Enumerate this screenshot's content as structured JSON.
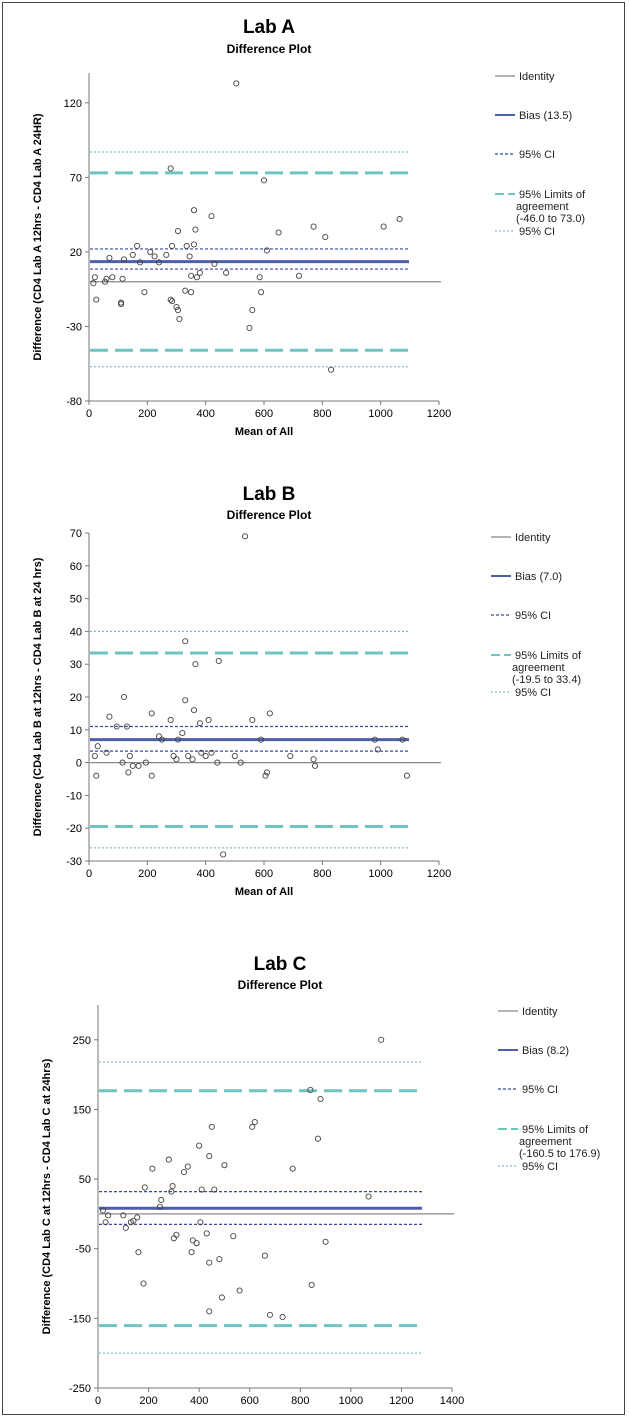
{
  "chart_data": [
    {
      "type": "scatter",
      "title": "Lab A",
      "subtitle": "Difference Plot",
      "xlabel": "Mean of All",
      "ylabel": "Difference (CD4 Lab A 12hrs - CD4 Lab A 24HR)",
      "xlim": [
        0,
        1200
      ],
      "ylim": [
        -80,
        140
      ],
      "xticks": [
        "0",
        "200",
        "400",
        "600",
        "800",
        "1000",
        "1200"
      ],
      "yticks": [
        "-80",
        "-30",
        "20",
        "70",
        "120"
      ],
      "legend": {
        "identity": "Identity",
        "bias": "Bias (13.5)",
        "ci": "95% CI",
        "loa": [
          "95% Limits of",
          "agreement",
          "(-46.0 to 73.0)"
        ],
        "ci2": "95% CI"
      },
      "lines": {
        "identity": 0,
        "bias": 13.5,
        "bias_ci": [
          8.5,
          22
        ],
        "loa": [
          -46,
          73
        ],
        "loa_ci": [
          -57,
          87
        ]
      },
      "colors": {
        "identity": "#888888",
        "bias": "#4e5fa8",
        "bias_ci": "#3a47a0",
        "loa": "#6fc3c3",
        "loa_ci": "#5bb3bf"
      },
      "points": [
        [
          15,
          -1
        ],
        [
          20,
          3
        ],
        [
          25,
          -12
        ],
        [
          55,
          0
        ],
        [
          60,
          2
        ],
        [
          70,
          16
        ],
        [
          80,
          3
        ],
        [
          110,
          -14
        ],
        [
          110,
          -15
        ],
        [
          115,
          2
        ],
        [
          120,
          15
        ],
        [
          150,
          18
        ],
        [
          165,
          24
        ],
        [
          175,
          13
        ],
        [
          190,
          -7
        ],
        [
          210,
          20
        ],
        [
          225,
          17
        ],
        [
          240,
          13
        ],
        [
          265,
          18
        ],
        [
          280,
          -12
        ],
        [
          285,
          -13
        ],
        [
          285,
          24
        ],
        [
          280,
          76
        ],
        [
          300,
          -17
        ],
        [
          305,
          -19
        ],
        [
          310,
          -25
        ],
        [
          305,
          34
        ],
        [
          330,
          -6
        ],
        [
          335,
          24
        ],
        [
          345,
          17
        ],
        [
          350,
          4
        ],
        [
          350,
          -7
        ],
        [
          360,
          25
        ],
        [
          360,
          48
        ],
        [
          365,
          35
        ],
        [
          370,
          3
        ],
        [
          380,
          6
        ],
        [
          420,
          44
        ],
        [
          430,
          12
        ],
        [
          470,
          6
        ],
        [
          505,
          133
        ],
        [
          550,
          -31
        ],
        [
          560,
          -19
        ],
        [
          585,
          3
        ],
        [
          590,
          -7
        ],
        [
          600,
          68
        ],
        [
          610,
          21
        ],
        [
          650,
          33
        ],
        [
          720,
          4
        ],
        [
          770,
          37
        ],
        [
          810,
          30
        ],
        [
          830,
          -59
        ],
        [
          1010,
          37
        ],
        [
          1065,
          42
        ]
      ]
    },
    {
      "type": "scatter",
      "title": "Lab B",
      "subtitle": "Difference Plot",
      "xlabel": "Mean of All",
      "ylabel": "Difference (CD4 Lab B at 12hrs - CD4 Lab B at 24 hrs)",
      "xlim": [
        0,
        1200
      ],
      "ylim": [
        -30,
        70
      ],
      "xticks": [
        "0",
        "200",
        "400",
        "600",
        "800",
        "1000",
        "1200"
      ],
      "yticks": [
        "-30",
        "-20",
        "-10",
        "0",
        "10",
        "20",
        "30",
        "40",
        "50",
        "60",
        "70"
      ],
      "legend": {
        "identity": "Identity",
        "bias": "Bias (7.0)",
        "ci": "95% CI",
        "loa": [
          "95% Limits of",
          "agreement",
          "(-19.5 to 33.4)"
        ],
        "ci2": "95% CI"
      },
      "lines": {
        "identity": 0,
        "bias": 7.0,
        "bias_ci": [
          3.5,
          11
        ],
        "loa": [
          -19.5,
          33.4
        ],
        "loa_ci": [
          -26,
          40
        ]
      },
      "colors": {
        "identity": "#888888",
        "bias": "#4e5fa8",
        "bias_ci": "#3a47a0",
        "loa": "#6fc3c3",
        "loa_ci": "#5bb3bf"
      },
      "points": [
        [
          20,
          2
        ],
        [
          25,
          -4
        ],
        [
          30,
          5
        ],
        [
          60,
          3
        ],
        [
          70,
          14
        ],
        [
          95,
          11
        ],
        [
          115,
          0
        ],
        [
          120,
          20
        ],
        [
          130,
          11
        ],
        [
          135,
          -3
        ],
        [
          140,
          2
        ],
        [
          150,
          -1
        ],
        [
          170,
          -1
        ],
        [
          195,
          0
        ],
        [
          215,
          15
        ],
        [
          215,
          -4
        ],
        [
          240,
          8
        ],
        [
          250,
          7
        ],
        [
          280,
          13
        ],
        [
          290,
          2
        ],
        [
          300,
          1
        ],
        [
          305,
          7
        ],
        [
          320,
          9
        ],
        [
          330,
          19
        ],
        [
          330,
          37
        ],
        [
          340,
          2
        ],
        [
          355,
          1
        ],
        [
          360,
          16
        ],
        [
          365,
          30
        ],
        [
          380,
          12
        ],
        [
          385,
          3
        ],
        [
          400,
          2
        ],
        [
          410,
          13
        ],
        [
          420,
          3
        ],
        [
          440,
          0
        ],
        [
          445,
          31
        ],
        [
          460,
          -28
        ],
        [
          500,
          2
        ],
        [
          520,
          0
        ],
        [
          535,
          69
        ],
        [
          560,
          13
        ],
        [
          590,
          7
        ],
        [
          605,
          -4
        ],
        [
          610,
          -3
        ],
        [
          620,
          15
        ],
        [
          690,
          2
        ],
        [
          770,
          1
        ],
        [
          775,
          -1
        ],
        [
          980,
          7
        ],
        [
          990,
          4
        ],
        [
          1075,
          7
        ],
        [
          1090,
          -4
        ]
      ]
    },
    {
      "type": "scatter",
      "title": "Lab C",
      "subtitle": "Difference Plot",
      "xlabel": "Mean of All",
      "ylabel": "Difference (CD4 Lab C at 12hrs - CD4 Lab C at 24hrs)",
      "xlim": [
        0,
        1400
      ],
      "ylim": [
        -250,
        300
      ],
      "xticks": [
        "0",
        "200",
        "400",
        "600",
        "800",
        "1000",
        "1200",
        "1400"
      ],
      "yticks": [
        "-250",
        "-150",
        "-50",
        "50",
        "150",
        "250"
      ],
      "legend": {
        "identity": "Identity",
        "bias": "Bias (8.2)",
        "ci": "95% CI",
        "loa": [
          "95% Limits of",
          "agreement",
          "(-160.5 to 176.9)"
        ],
        "ci2": "95% CI"
      },
      "lines": {
        "identity": 0,
        "bias": 8.2,
        "bias_ci": [
          -15,
          32
        ],
        "loa": [
          -160.5,
          176.9
        ],
        "loa_ci": [
          -200,
          218
        ]
      },
      "colors": {
        "identity": "#888888",
        "bias": "#4e5fa8",
        "bias_ci": "#3a47a0",
        "loa": "#6fc3c3",
        "loa_ci": "#5bb3bf"
      },
      "points": [
        [
          20,
          5
        ],
        [
          30,
          -12
        ],
        [
          40,
          -2
        ],
        [
          100,
          -2
        ],
        [
          110,
          -20
        ],
        [
          130,
          -12
        ],
        [
          140,
          -10
        ],
        [
          155,
          -5
        ],
        [
          160,
          -55
        ],
        [
          180,
          -100
        ],
        [
          185,
          38
        ],
        [
          215,
          65
        ],
        [
          245,
          10
        ],
        [
          250,
          20
        ],
        [
          280,
          78
        ],
        [
          290,
          32
        ],
        [
          295,
          40
        ],
        [
          300,
          -35
        ],
        [
          310,
          -30
        ],
        [
          340,
          60
        ],
        [
          355,
          68
        ],
        [
          370,
          -55
        ],
        [
          375,
          -38
        ],
        [
          390,
          -42
        ],
        [
          400,
          98
        ],
        [
          405,
          -12
        ],
        [
          410,
          35
        ],
        [
          430,
          -28
        ],
        [
          440,
          -70
        ],
        [
          440,
          83
        ],
        [
          450,
          125
        ],
        [
          460,
          35
        ],
        [
          440,
          -140
        ],
        [
          480,
          -65
        ],
        [
          490,
          -120
        ],
        [
          500,
          70
        ],
        [
          535,
          -32
        ],
        [
          560,
          -110
        ],
        [
          610,
          125
        ],
        [
          620,
          132
        ],
        [
          660,
          -60
        ],
        [
          680,
          -145
        ],
        [
          730,
          -148
        ],
        [
          770,
          65
        ],
        [
          840,
          178
        ],
        [
          845,
          -102
        ],
        [
          870,
          108
        ],
        [
          880,
          165
        ],
        [
          900,
          -40
        ],
        [
          1070,
          25
        ],
        [
          1120,
          250
        ]
      ]
    }
  ]
}
